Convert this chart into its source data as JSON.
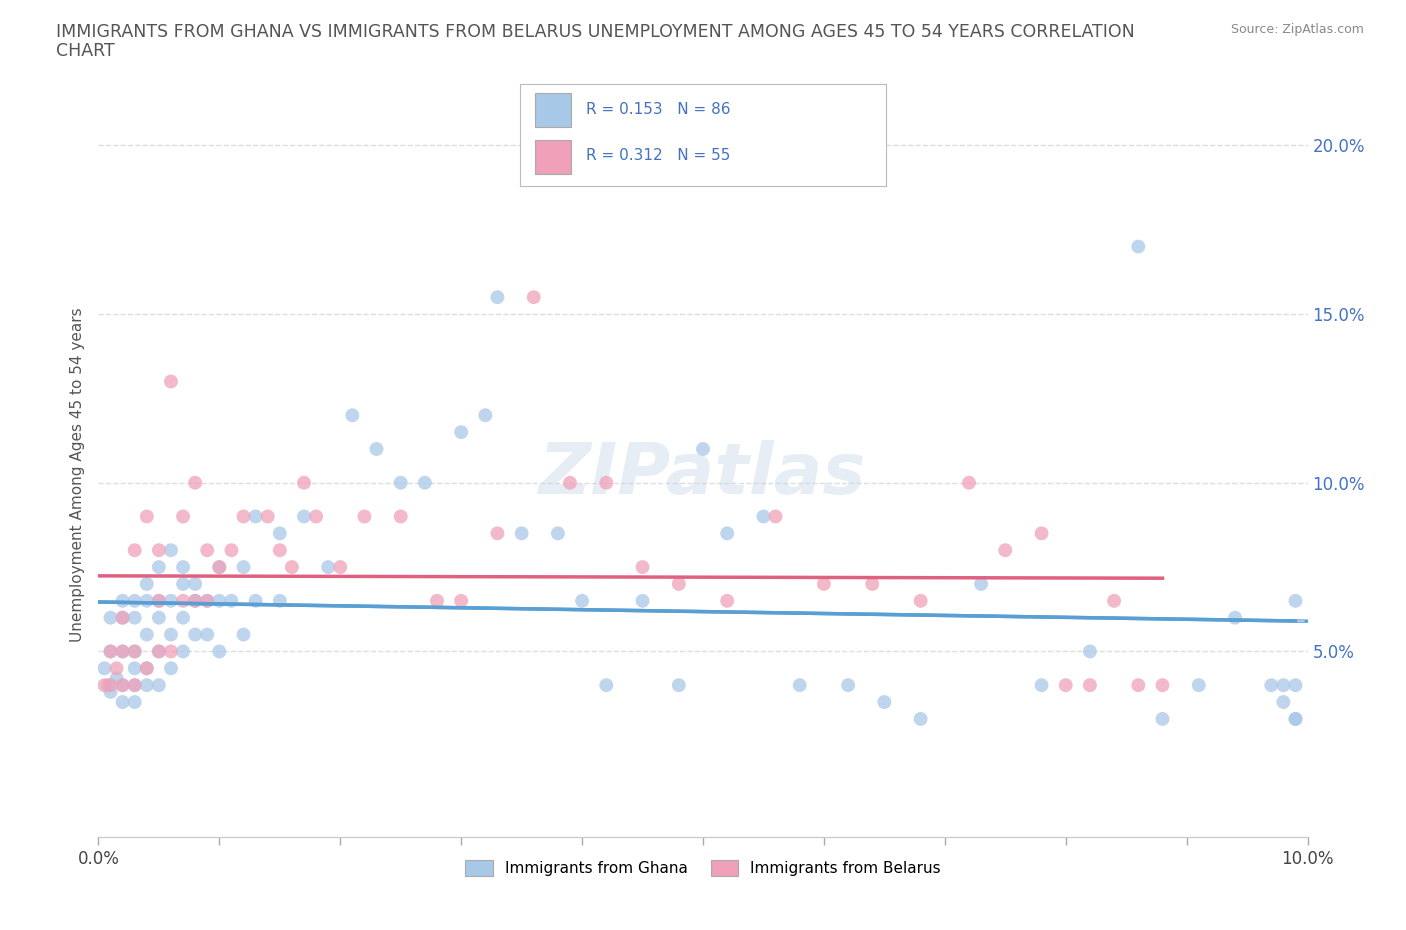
{
  "title_line1": "IMMIGRANTS FROM GHANA VS IMMIGRANTS FROM BELARUS UNEMPLOYMENT AMONG AGES 45 TO 54 YEARS CORRELATION",
  "title_line2": "CHART",
  "source_text": "Source: ZipAtlas.com",
  "ylabel": "Unemployment Among Ages 45 to 54 years",
  "legend_label_1": "Immigrants from Ghana",
  "legend_label_2": "Immigrants from Belarus",
  "R1": 0.153,
  "N1": 86,
  "R2": 0.312,
  "N2": 55,
  "color_ghana": "#a8c8e8",
  "color_belarus": "#f0a0b8",
  "trendline_color_ghana": "#5a9fd4",
  "trendline_color_belarus": "#e06080",
  "trendline_dashed_color": "#aaccee",
  "xlim": [
    0.0,
    0.1
  ],
  "ylim": [
    -0.005,
    0.21
  ],
  "yticks_right": [
    0.05,
    0.1,
    0.15,
    0.2
  ],
  "background_color": "#ffffff",
  "watermark": "ZIPatlas",
  "ghana_x": [
    0.0005,
    0.0008,
    0.001,
    0.001,
    0.001,
    0.0015,
    0.002,
    0.002,
    0.002,
    0.002,
    0.002,
    0.003,
    0.003,
    0.003,
    0.003,
    0.003,
    0.003,
    0.004,
    0.004,
    0.004,
    0.004,
    0.004,
    0.005,
    0.005,
    0.005,
    0.005,
    0.005,
    0.006,
    0.006,
    0.006,
    0.006,
    0.007,
    0.007,
    0.007,
    0.007,
    0.008,
    0.008,
    0.008,
    0.009,
    0.009,
    0.01,
    0.01,
    0.01,
    0.011,
    0.012,
    0.012,
    0.013,
    0.013,
    0.015,
    0.015,
    0.017,
    0.019,
    0.021,
    0.023,
    0.025,
    0.027,
    0.03,
    0.032,
    0.033,
    0.035,
    0.038,
    0.04,
    0.042,
    0.045,
    0.048,
    0.05,
    0.052,
    0.055,
    0.058,
    0.062,
    0.065,
    0.068,
    0.073,
    0.078,
    0.082,
    0.086,
    0.088,
    0.091,
    0.094,
    0.097,
    0.098,
    0.098,
    0.099,
    0.099,
    0.099,
    0.099
  ],
  "ghana_y": [
    0.045,
    0.04,
    0.038,
    0.05,
    0.06,
    0.042,
    0.035,
    0.04,
    0.05,
    0.06,
    0.065,
    0.035,
    0.04,
    0.045,
    0.05,
    0.06,
    0.065,
    0.04,
    0.045,
    0.055,
    0.065,
    0.07,
    0.04,
    0.05,
    0.06,
    0.065,
    0.075,
    0.045,
    0.055,
    0.065,
    0.08,
    0.05,
    0.06,
    0.07,
    0.075,
    0.055,
    0.065,
    0.07,
    0.055,
    0.065,
    0.05,
    0.065,
    0.075,
    0.065,
    0.055,
    0.075,
    0.065,
    0.09,
    0.065,
    0.085,
    0.09,
    0.075,
    0.12,
    0.11,
    0.1,
    0.1,
    0.115,
    0.12,
    0.155,
    0.085,
    0.085,
    0.065,
    0.04,
    0.065,
    0.04,
    0.11,
    0.085,
    0.09,
    0.04,
    0.04,
    0.035,
    0.03,
    0.07,
    0.04,
    0.05,
    0.17,
    0.03,
    0.04,
    0.06,
    0.04,
    0.04,
    0.035,
    0.03,
    0.065,
    0.04,
    0.03
  ],
  "belarus_x": [
    0.0005,
    0.001,
    0.001,
    0.0015,
    0.002,
    0.002,
    0.002,
    0.003,
    0.003,
    0.003,
    0.004,
    0.004,
    0.005,
    0.005,
    0.005,
    0.006,
    0.006,
    0.007,
    0.007,
    0.008,
    0.008,
    0.009,
    0.009,
    0.01,
    0.011,
    0.012,
    0.014,
    0.015,
    0.016,
    0.017,
    0.018,
    0.02,
    0.022,
    0.025,
    0.028,
    0.03,
    0.033,
    0.036,
    0.039,
    0.042,
    0.045,
    0.048,
    0.052,
    0.056,
    0.06,
    0.064,
    0.068,
    0.072,
    0.075,
    0.078,
    0.08,
    0.082,
    0.084,
    0.086,
    0.088
  ],
  "belarus_y": [
    0.04,
    0.04,
    0.05,
    0.045,
    0.04,
    0.05,
    0.06,
    0.04,
    0.05,
    0.08,
    0.045,
    0.09,
    0.05,
    0.065,
    0.08,
    0.05,
    0.13,
    0.065,
    0.09,
    0.065,
    0.1,
    0.065,
    0.08,
    0.075,
    0.08,
    0.09,
    0.09,
    0.08,
    0.075,
    0.1,
    0.09,
    0.075,
    0.09,
    0.09,
    0.065,
    0.065,
    0.085,
    0.155,
    0.1,
    0.1,
    0.075,
    0.07,
    0.065,
    0.09,
    0.07,
    0.07,
    0.065,
    0.1,
    0.08,
    0.085,
    0.04,
    0.04,
    0.065,
    0.04,
    0.04
  ]
}
